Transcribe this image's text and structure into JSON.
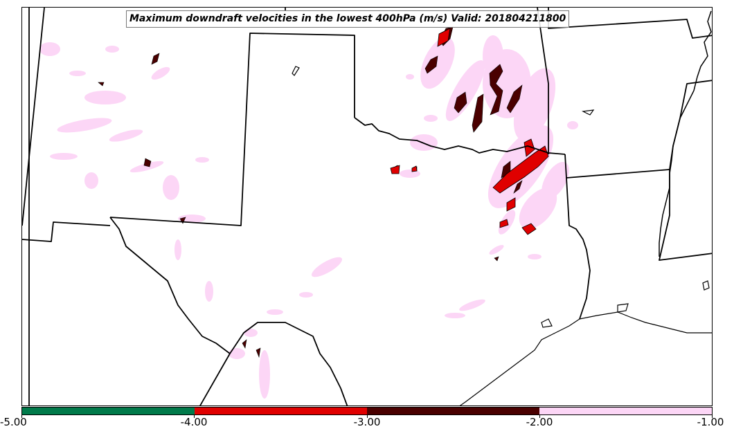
{
  "title": "Maximum downdraft velocities in the lowest 400hPa (m/s) Valid: 201804211800",
  "colorbar": {
    "labels": [
      "-5.00",
      "-4.00",
      "-3.00",
      "-2.00",
      "-1.00"
    ],
    "colors": [
      "#007a4a",
      "#e00000",
      "#4a0000",
      "#fcd6f6"
    ]
  },
  "map": {
    "region": "Southern Plains — Texas, Oklahoma and surrounding states",
    "background": "#ffffff",
    "border_color": "#000000"
  }
}
